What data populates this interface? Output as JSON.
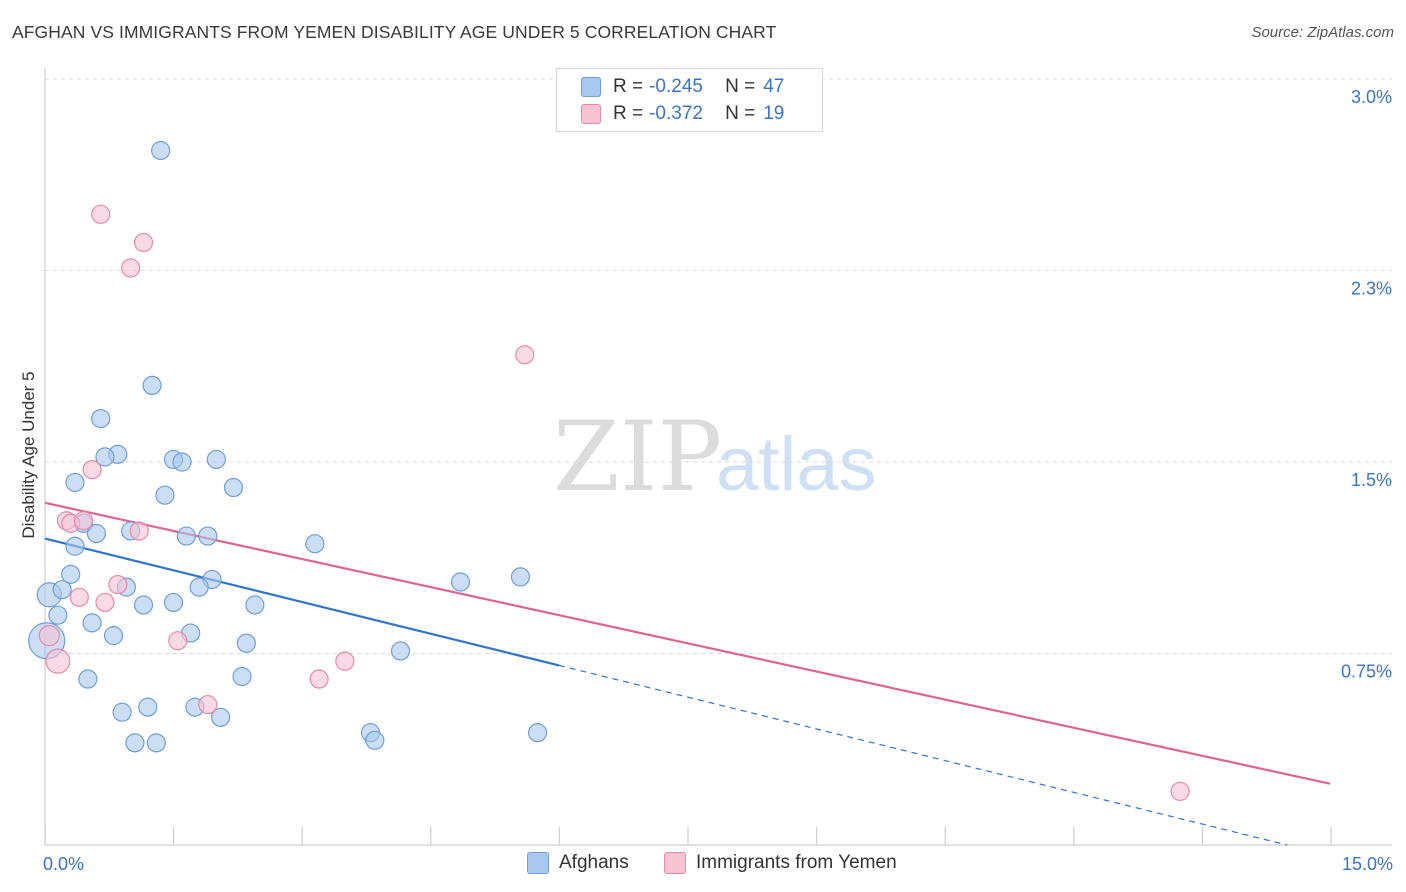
{
  "title": "AFGHAN VS IMMIGRANTS FROM YEMEN DISABILITY AGE UNDER 5 CORRELATION CHART",
  "source": "Source: ZipAtlas.com",
  "watermark": {
    "zip": "ZIP",
    "atlas": "atlas"
  },
  "legend_top": {
    "rows": [
      {
        "r_label": "R =",
        "r_value": "-0.245",
        "n_label": "N =",
        "n_value": "47"
      },
      {
        "r_label": "R =",
        "r_value": "-0.372",
        "n_label": "N =",
        "n_value": "19"
      }
    ]
  },
  "colors": {
    "blue_fill": "#a9c8f0",
    "blue_stroke": "#6f9fd8",
    "blue_line": "#2f74cf",
    "pink_fill": "#f7c3d3",
    "pink_stroke": "#e88aa8",
    "pink_line": "#e0648f",
    "grid": "#d9d9d9",
    "axis_text": "#3a74c9"
  },
  "chart_data": {
    "type": "scatter",
    "title": "AFGHAN VS IMMIGRANTS FROM YEMEN DISABILITY AGE UNDER 5 CORRELATION CHART",
    "xlabel": "",
    "ylabel": "Disability Age Under 5",
    "xlim": [
      0,
      15
    ],
    "ylim": [
      0,
      3.0
    ],
    "x_tick_labels": [
      "0.0%",
      "15.0%"
    ],
    "y_ticks": [
      0.75,
      1.5,
      2.25,
      3.0
    ],
    "y_tick_labels": [
      "0.75%",
      "1.5%",
      "2.3%",
      "3.0%"
    ],
    "legend_position": "bottom-center",
    "series": [
      {
        "name": "Afghans",
        "r": -0.245,
        "n": 47,
        "trend": {
          "x0": 0,
          "y0": 1.2,
          "x_solid_end": 6.0,
          "x1": 14.5,
          "y1": 0.0
        },
        "points": [
          [
            1.35,
            2.72
          ],
          [
            1.25,
            1.8
          ],
          [
            0.65,
            1.67
          ],
          [
            0.85,
            1.53
          ],
          [
            0.7,
            1.52
          ],
          [
            1.5,
            1.51
          ],
          [
            1.6,
            1.5
          ],
          [
            2.0,
            1.51
          ],
          [
            0.35,
            1.42
          ],
          [
            2.2,
            1.4
          ],
          [
            1.4,
            1.37
          ],
          [
            0.45,
            1.26
          ],
          [
            1.0,
            1.23
          ],
          [
            0.6,
            1.22
          ],
          [
            1.65,
            1.21
          ],
          [
            1.9,
            1.21
          ],
          [
            3.15,
            1.18
          ],
          [
            0.35,
            1.17
          ],
          [
            0.3,
            1.06
          ],
          [
            1.95,
            1.04
          ],
          [
            4.85,
            1.03
          ],
          [
            5.55,
            1.05
          ],
          [
            0.05,
            0.98
          ],
          [
            0.2,
            1.0
          ],
          [
            0.95,
            1.01
          ],
          [
            1.8,
            1.01
          ],
          [
            1.15,
            0.94
          ],
          [
            1.5,
            0.95
          ],
          [
            2.45,
            0.94
          ],
          [
            0.15,
            0.9
          ],
          [
            0.55,
            0.87
          ],
          [
            0.8,
            0.82
          ],
          [
            1.7,
            0.83
          ],
          [
            2.35,
            0.79
          ],
          [
            0.02,
            0.8
          ],
          [
            4.15,
            0.76
          ],
          [
            0.5,
            0.65
          ],
          [
            2.3,
            0.66
          ],
          [
            1.2,
            0.54
          ],
          [
            0.9,
            0.52
          ],
          [
            1.75,
            0.54
          ],
          [
            2.05,
            0.5
          ],
          [
            3.8,
            0.44
          ],
          [
            5.75,
            0.44
          ],
          [
            3.85,
            0.41
          ],
          [
            1.05,
            0.4
          ],
          [
            1.3,
            0.4
          ]
        ],
        "sizes": [
          9,
          9,
          9,
          9,
          9,
          9,
          9,
          9,
          9,
          9,
          9,
          9,
          9,
          9,
          9,
          9,
          9,
          9,
          9,
          9,
          9,
          9,
          12,
          9,
          9,
          9,
          9,
          9,
          9,
          9,
          9,
          9,
          9,
          9,
          18,
          9,
          9,
          9,
          9,
          9,
          9,
          9,
          9,
          9,
          9,
          9,
          9
        ]
      },
      {
        "name": "Immigrants from Yemen",
        "r": -0.372,
        "n": 19,
        "trend": {
          "x0": 0,
          "y0": 1.34,
          "x1": 15,
          "y1": 0.24
        },
        "points": [
          [
            0.65,
            2.47
          ],
          [
            1.15,
            2.36
          ],
          [
            1.0,
            2.26
          ],
          [
            5.6,
            1.92
          ],
          [
            0.55,
            1.47
          ],
          [
            0.25,
            1.27
          ],
          [
            0.3,
            1.26
          ],
          [
            0.45,
            1.27
          ],
          [
            1.1,
            1.23
          ],
          [
            0.85,
            1.02
          ],
          [
            0.4,
            0.97
          ],
          [
            0.7,
            0.95
          ],
          [
            1.55,
            0.8
          ],
          [
            0.05,
            0.82
          ],
          [
            0.15,
            0.72
          ],
          [
            3.5,
            0.72
          ],
          [
            3.2,
            0.65
          ],
          [
            1.9,
            0.55
          ],
          [
            13.25,
            0.21
          ]
        ],
        "sizes": [
          9,
          9,
          9,
          9,
          9,
          9,
          9,
          9,
          9,
          9,
          9,
          9,
          9,
          10,
          12,
          9,
          9,
          9,
          9
        ]
      }
    ]
  }
}
